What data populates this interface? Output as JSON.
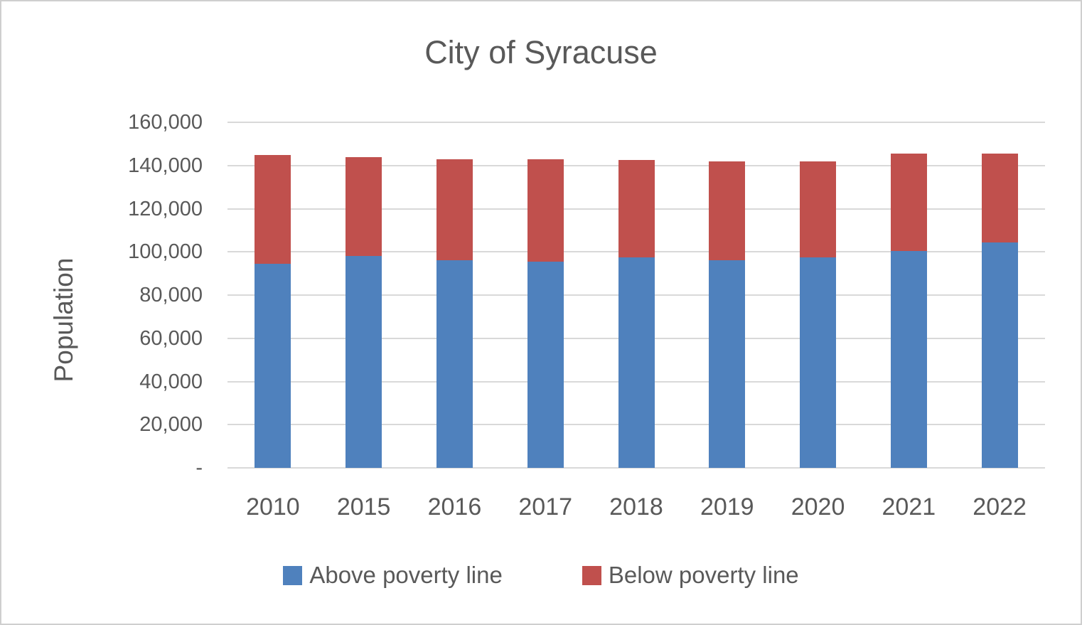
{
  "window": {
    "title": "City of Syracuse chart"
  },
  "colors": {
    "above_series": "#4F81BD",
    "below_series": "#C0504D",
    "text": "#595959",
    "gridline": "#D9D9D9",
    "frame_border": "#CFCFCF",
    "background": "#FFFFFF"
  },
  "chart_data": {
    "type": "bar",
    "stacked": true,
    "title": "City of Syracuse",
    "xlabel": "",
    "ylabel": "Population",
    "ylim": [
      0,
      160000
    ],
    "ytick_interval": 20000,
    "ytick_labels_bottom_to_top": [
      "-",
      "20,000",
      "40,000",
      "60,000",
      "80,000",
      "100,000",
      "120,000",
      "140,000",
      "160,000"
    ],
    "grid": true,
    "legend_position": "bottom",
    "categories": [
      "2010",
      "2015",
      "2016",
      "2017",
      "2018",
      "2019",
      "2020",
      "2021",
      "2022"
    ],
    "series": [
      {
        "name": "Above poverty line",
        "color": "#4F81BD",
        "values": [
          94500,
          98000,
          96000,
          95500,
          97500,
          96000,
          97500,
          100500,
          104500
        ]
      },
      {
        "name": "Below poverty line",
        "color": "#C0504D",
        "values": [
          50500,
          46000,
          47000,
          47500,
          45000,
          46000,
          44500,
          45000,
          41000
        ]
      }
    ],
    "totals": [
      145000,
      144000,
      143000,
      143000,
      142500,
      142000,
      142000,
      145500,
      145500
    ]
  }
}
